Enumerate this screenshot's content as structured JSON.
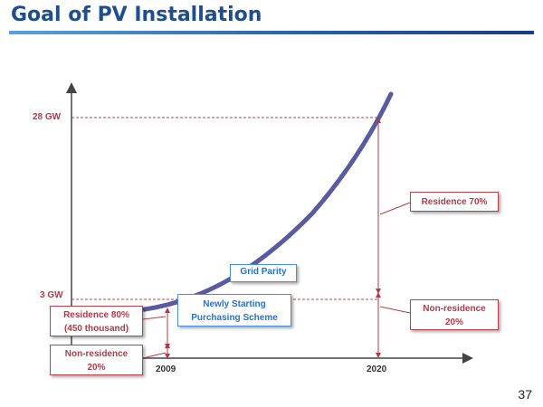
{
  "slide": {
    "title": "Goal of PV Installation",
    "page_number": "37"
  },
  "diagram": {
    "y_ticks": [
      {
        "label": "28 GW",
        "value": 28
      },
      {
        "label": "3 GW",
        "value": 3
      }
    ],
    "x_ticks": [
      {
        "label": "2009"
      },
      {
        "label": "2020"
      }
    ],
    "boxes": {
      "grid_parity": "Grid Parity",
      "newly_starting": [
        "Newly Starting",
        "Purchasing Scheme"
      ],
      "residence_80": [
        "Residence 80%",
        "(450 thousand)"
      ],
      "non_residence_2009": [
        "Non-residence",
        "20%"
      ],
      "residence_70": "Residence 70%",
      "non_residence_2020": [
        "Non-residence",
        "20%"
      ]
    },
    "colors": {
      "curve": "#5a5aa0",
      "axis": "#444444",
      "red_accent": "#b23a48",
      "blue_accent": "#2a72c8"
    }
  }
}
